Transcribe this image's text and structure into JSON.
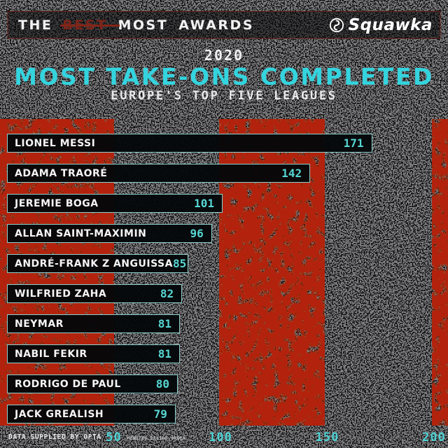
{
  "header": {
    "title_prefix": "THE",
    "title_struck": "BEST",
    "title_suffix": "MOST AWARDS",
    "logo_text": "Squawka",
    "logo_icon": "squawka-bird-icon"
  },
  "title_block": {
    "year": "2020",
    "title": "MOST TAKE-ONS COMPLETED",
    "subtitle": "EUROPE'S TOP FIVE LEAGUES"
  },
  "chart_data": {
    "type": "bar",
    "orientation": "horizontal",
    "title": "MOST TAKE-ONS COMPLETED",
    "subtitle": "EUROPE'S TOP FIVE LEAGUES",
    "year": "2020",
    "categories": [
      "LIONEL MESSI",
      "ADAMA TRAORÉ",
      "JEREMIE BOGA",
      "ALLAN SAINT-MAXIMIN",
      "ANDRÉ-FRANK Z ANGUISSA",
      "WILFRIED ZAHA",
      "NEYMAR",
      "NABIL FEKIR",
      "RODRIGO DE PAUL",
      "JACK GREALISH"
    ],
    "values": [
      171,
      142,
      101,
      96,
      85,
      82,
      81,
      81,
      80,
      79
    ],
    "xlim": [
      0,
      200
    ],
    "x_ticks": [
      50,
      100,
      150,
      200
    ],
    "grid": "off",
    "legend": "none",
    "value_labels": "inside-end"
  },
  "footer": {
    "source": "DATA SUPPLIED BY OPTA",
    "tiebreak_note": "MINUTES DECIDE ORDER"
  },
  "colors": {
    "background": "#0a0a0d",
    "accent_cyan": "#33d4de",
    "value_cyan": "#57d6d3",
    "tick_cyan": "#4ed2d3",
    "bar_border": "#8ccfcc",
    "bar_fill": "#05080a",
    "grunge_red": "#b32407",
    "struck_red": "#7e241a",
    "header_border": "#5a1d16",
    "text_white": "#f2f2f2"
  }
}
